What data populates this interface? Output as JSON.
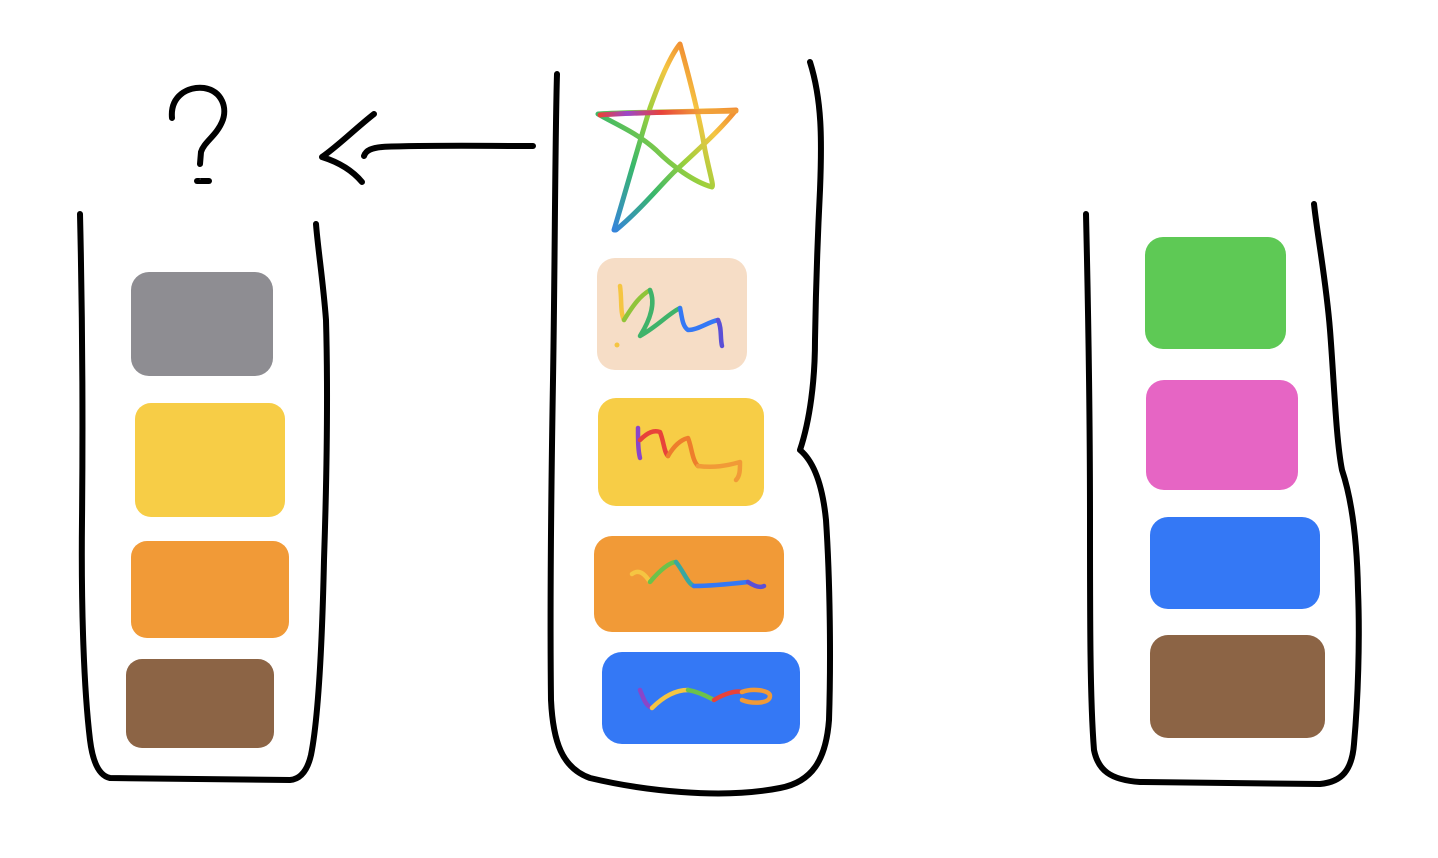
{
  "question_mark": "?",
  "colors": {
    "gray": "#8e8d92",
    "yellow": "#f7cd46",
    "orange": "#f19a37",
    "brown": "#8c6445",
    "peach": "#f6ddc6",
    "blue": "#3478f5",
    "green": "#5ec955",
    "pink": "#e665c4"
  },
  "left_column": {
    "swatches": [
      "gray",
      "yellow",
      "orange",
      "brown"
    ]
  },
  "middle_column": {
    "top_icon": "rainbow-star-icon",
    "swatches": [
      {
        "fill": "peach",
        "scribble": [
          "#f5c542",
          "#8fc43a",
          "#3fb36a",
          "#3478f5",
          "#5b4fd6"
        ]
      },
      {
        "fill": "yellow",
        "scribble": [
          "#8a46c9",
          "#e8423a",
          "#ee7d2c",
          "#f19a37"
        ]
      },
      {
        "fill": "orange",
        "scribble": [
          "#f5c542",
          "#6cc24a",
          "#3aa7a0",
          "#3478f5",
          "#5b4fd6"
        ]
      },
      {
        "fill": "blue",
        "scribble": [
          "#8a46c9",
          "#f5c542",
          "#6cc24a",
          "#e8423a",
          "#f19a37"
        ]
      }
    ]
  },
  "right_column": {
    "swatches": [
      "green",
      "pink",
      "blue",
      "brown"
    ]
  }
}
